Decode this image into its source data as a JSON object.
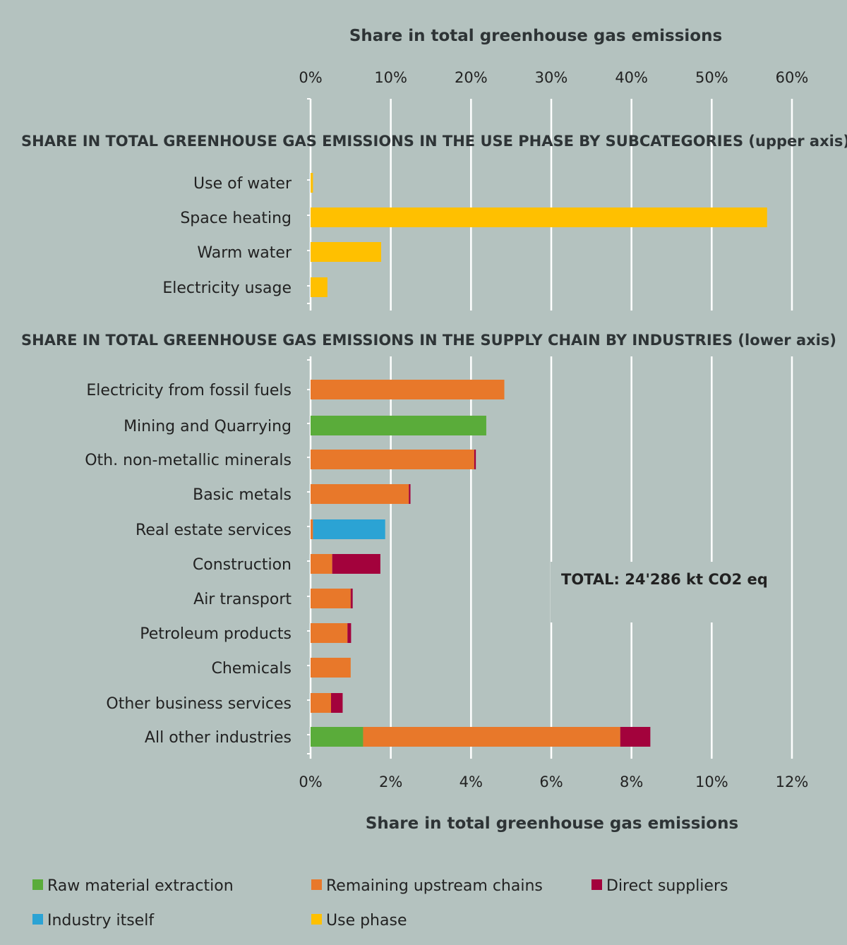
{
  "chart_data": {
    "type": "bar",
    "orientation": "horizontal",
    "upper_axis": {
      "title": "Share in total greenhouse gas emissions",
      "ticks": [
        "0%",
        "10%",
        "20%",
        "30%",
        "40%",
        "50%",
        "60%"
      ],
      "range": [
        0,
        60
      ]
    },
    "lower_axis": {
      "title": "Share in total greenhouse gas emissions",
      "ticks": [
        "0%",
        "2%",
        "4%",
        "6%",
        "8%",
        "10%",
        "12%"
      ],
      "range": [
        0,
        12
      ]
    },
    "use_phase_section": {
      "title": "SHARE IN TOTAL GREENHOUSE GAS EMISSIONS IN THE USE PHASE BY SUBCATEGORIES (upper axis)",
      "categories": [
        "Use of water",
        "Space heating",
        "Warm water",
        "Electricity usage"
      ],
      "series": [
        {
          "name": "Use phase",
          "color": "#ffc000",
          "values": [
            0.3,
            56.9,
            8.8,
            2.1
          ]
        }
      ]
    },
    "supply_chain_section": {
      "title": "SHARE IN TOTAL GREENHOUSE GAS EMISSIONS IN THE SUPPLY CHAIN BY INDUSTRIES (lower axis)",
      "categories": [
        "Electricity from fossil fuels",
        "Mining and Quarrying",
        "Oth. non-metallic minerals",
        "Basic metals",
        "Real estate services",
        "Construction",
        "Air transport",
        "Petroleum products",
        "Chemicals",
        "Other business services",
        "All other industries"
      ],
      "series": [
        {
          "name": "Raw material extraction",
          "color": "#5aac3a",
          "values": [
            0,
            4.38,
            0,
            0,
            0,
            0,
            0,
            0,
            0,
            0,
            1.31
          ]
        },
        {
          "name": "Remaining upstream chains",
          "color": "#e8782a",
          "values": [
            4.83,
            0,
            4.08,
            2.45,
            0.06,
            0.54,
            1.0,
            0.92,
            1.0,
            0.51,
            6.41
          ]
        },
        {
          "name": "Direct suppliers",
          "color": "#a3023c",
          "values": [
            0,
            0,
            0.04,
            0.04,
            0,
            1.2,
            0.05,
            0.09,
            0,
            0.29,
            0.75
          ]
        },
        {
          "name": "Industry itself",
          "color": "#2ba3d4",
          "values": [
            0,
            0,
            0,
            0,
            1.8,
            0,
            0,
            0,
            0,
            0,
            0
          ]
        }
      ]
    },
    "annotation": "TOTAL: 24'286 kt CO2 eq",
    "legend": {
      "placement": "bottom",
      "items": [
        {
          "name": "Raw material extraction",
          "color": "#5aac3a"
        },
        {
          "name": "Remaining upstream chains",
          "color": "#e8782a"
        },
        {
          "name": "Direct suppliers",
          "color": "#a3023c"
        },
        {
          "name": "Industry itself",
          "color": "#2ba3d4"
        },
        {
          "name": "Use phase",
          "color": "#ffc000"
        }
      ]
    },
    "grid": true,
    "background": "#b4c2bf"
  }
}
